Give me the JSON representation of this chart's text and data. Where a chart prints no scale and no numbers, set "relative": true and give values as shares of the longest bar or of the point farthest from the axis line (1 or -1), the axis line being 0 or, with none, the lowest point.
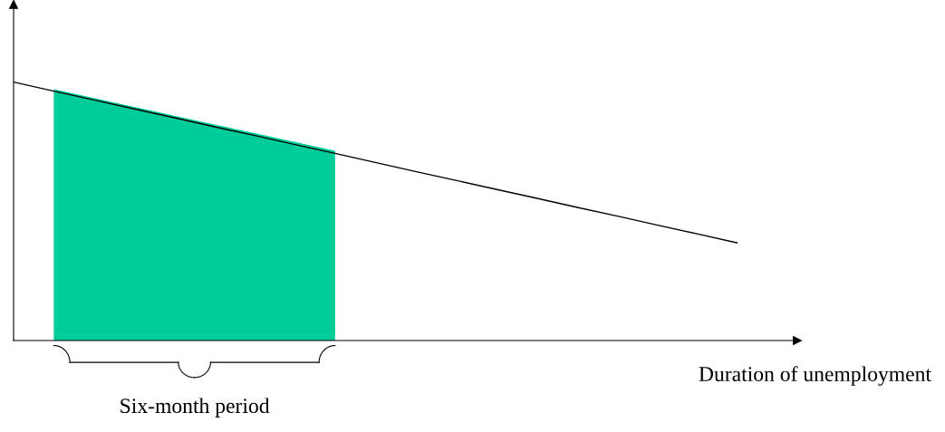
{
  "chart_data": {
    "type": "line",
    "relative": true,
    "xlabel": "Duration of unemployment",
    "annotations": [
      "Six-month period"
    ],
    "categories": [
      null,
      null,
      null,
      null,
      null,
      null,
      null,
      null,
      null,
      null,
      null,
      null,
      null,
      null,
      null,
      null,
      null,
      null,
      null
    ],
    "series": [
      {
        "type": "area",
        "color": "#00cc99",
        "values": [
          null,
          0.972,
          0.938,
          0.904,
          0.87,
          0.836,
          0.802,
          0.768,
          0.734,
          null,
          null,
          null,
          null,
          null,
          null,
          null,
          null,
          null,
          null
        ]
      },
      {
        "color": "#000000",
        "values": [
          1,
          0.965,
          0.931,
          0.896,
          0.862,
          0.827,
          0.793,
          0.758,
          0.724,
          0.689,
          0.654,
          0.62,
          0.585,
          0.551,
          0.516,
          0.482,
          0.447,
          0.413,
          0.378
        ]
      }
    ]
  }
}
